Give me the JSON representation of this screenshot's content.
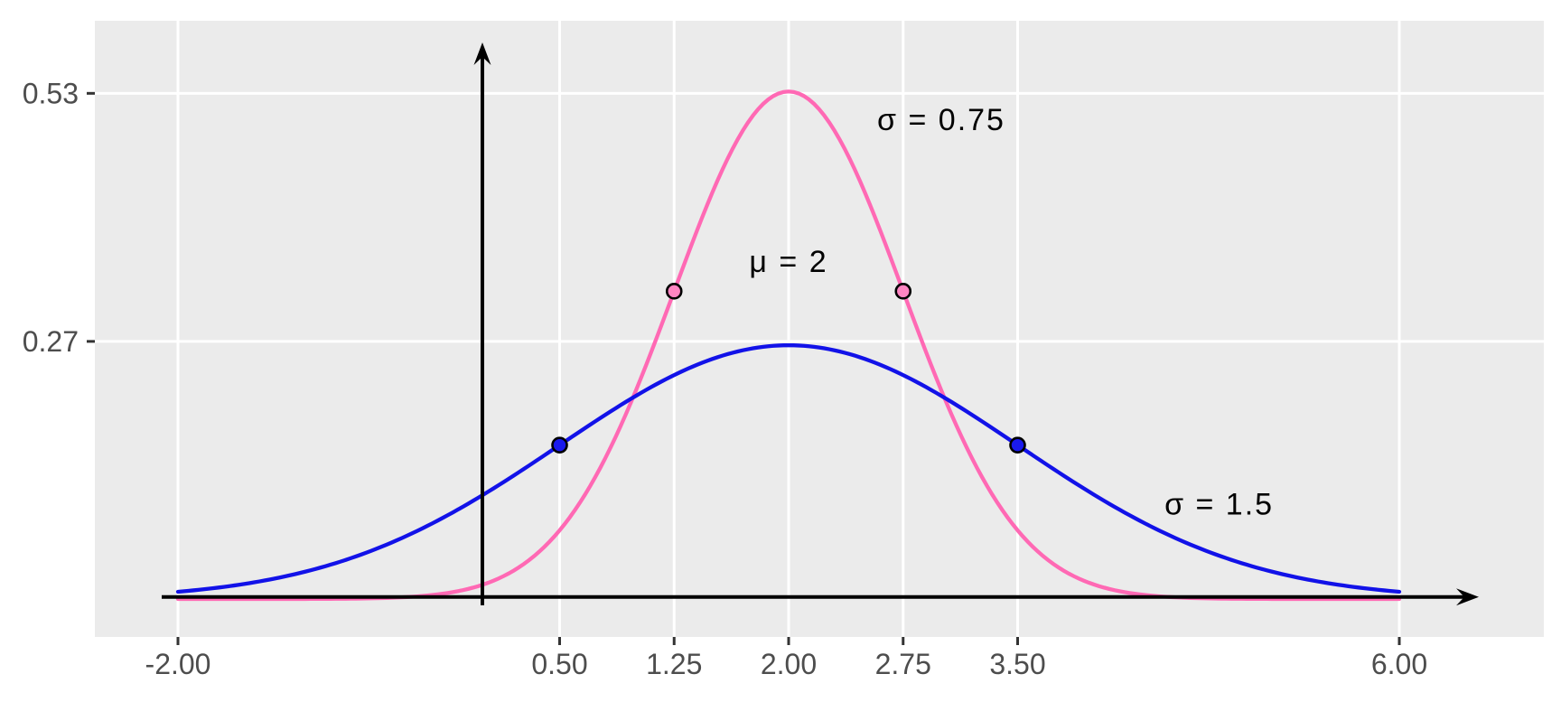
{
  "chart_data": {
    "type": "line",
    "title": "",
    "xlabel": "",
    "ylabel": "",
    "x_breaks": [
      -2,
      0.5,
      1.25,
      2,
      2.75,
      3.5,
      6
    ],
    "x_tick_labels": [
      "-2.00",
      "0.50",
      "1.25",
      "2.00",
      "2.75",
      "3.50",
      "6.00"
    ],
    "y_breaks": [
      0.27,
      0.53
    ],
    "y_tick_labels": [
      "0.27",
      "0.53"
    ],
    "xlim": [
      -2.55,
      6.95
    ],
    "ylim": [
      -0.04,
      0.605
    ],
    "grid": "major-only",
    "legend": "none",
    "series": [
      {
        "name": "normal-pdf-sigma-0.75",
        "distribution": "normal",
        "mu": 2,
        "sigma": 0.75,
        "x_range": [
          -2,
          6
        ],
        "peak_value": 0.53,
        "color": "#FF69B4",
        "marked_points": [
          {
            "x": 1.25,
            "y": 0.3226
          },
          {
            "x": 2.75,
            "y": 0.3226
          }
        ],
        "point_fill": "#FF85C2"
      },
      {
        "name": "normal-pdf-sigma-1.5",
        "distribution": "normal",
        "mu": 2,
        "sigma": 1.5,
        "x_range": [
          -2,
          6
        ],
        "peak_value": 0.27,
        "color": "#1212E8",
        "marked_points": [
          {
            "x": 0.5,
            "y": 0.1613
          },
          {
            "x": 3.5,
            "y": 0.1613
          }
        ],
        "point_fill": "#1A1AEE"
      }
    ],
    "annotations": [
      {
        "text": "σ = 0.75",
        "x": 3.0,
        "y": 0.503
      },
      {
        "text": "μ = 2",
        "x": 2.0,
        "y": 0.354
      },
      {
        "text": "σ = 1.5",
        "x": 4.82,
        "y": 0.1
      }
    ],
    "colors": {
      "panel_background": "#EBEBEB",
      "grid_line": "#FFFFFF",
      "axis_tick": "#333333",
      "axis_text": "#4D4D4D",
      "annotation_text": "#000000",
      "axis_arrow": "#000000",
      "point_outline": "#000000"
    }
  }
}
